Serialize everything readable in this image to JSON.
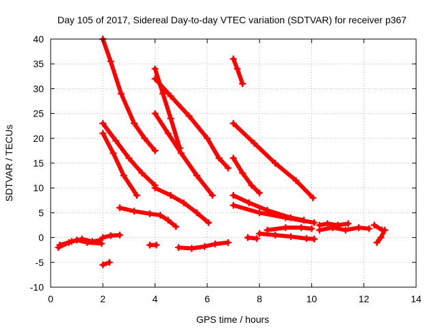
{
  "chart_data": {
    "type": "scatter",
    "title": "Day 105 of 2017, Sidereal Day-to-day VTEC variation (SDTVAR) for receiver p367",
    "xlabel": "GPS time / hours",
    "ylabel": "SDTVAR / TECUs",
    "xlim": [
      0,
      14
    ],
    "ylim": [
      -10,
      40
    ],
    "xticks": [
      "0",
      "2",
      "4",
      "6",
      "8",
      "10",
      "12",
      "14"
    ],
    "yticks": [
      "-10",
      "-5",
      "0",
      "5",
      "10",
      "15",
      "20",
      "25",
      "30",
      "35",
      "40"
    ],
    "grid": true,
    "marker": "+",
    "color": "#ff0000",
    "series": [
      {
        "points": [
          [
            2.0,
            40.0
          ],
          [
            2.3,
            35.5
          ],
          [
            2.7,
            29.0
          ],
          [
            3.2,
            23.0
          ],
          [
            3.6,
            20.0
          ],
          [
            4.0,
            17.5
          ]
        ]
      },
      {
        "points": [
          [
            4.0,
            34.0
          ],
          [
            4.3,
            29.0
          ],
          [
            4.6,
            24.0
          ],
          [
            4.95,
            18.0
          ]
        ]
      },
      {
        "points": [
          [
            7.0,
            36.0
          ],
          [
            7.15,
            34.0
          ],
          [
            7.35,
            31.0
          ]
        ]
      },
      {
        "points": [
          [
            4.0,
            32.0
          ],
          [
            4.6,
            28.5
          ],
          [
            5.3,
            24.5
          ],
          [
            6.0,
            20.0
          ],
          [
            6.45,
            16.0
          ],
          [
            6.8,
            14.0
          ]
        ]
      },
      {
        "points": [
          [
            7.0,
            23.0
          ],
          [
            7.8,
            19.0
          ],
          [
            8.6,
            15.0
          ],
          [
            9.4,
            11.5
          ],
          [
            10.05,
            8.0
          ]
        ]
      },
      {
        "points": [
          [
            2.0,
            23.0
          ],
          [
            2.5,
            19.5
          ],
          [
            3.0,
            16.0
          ],
          [
            3.5,
            13.0
          ],
          [
            4.0,
            10.5
          ]
        ]
      },
      {
        "points": [
          [
            2.0,
            21.0
          ],
          [
            2.4,
            17.0
          ],
          [
            2.8,
            12.5
          ],
          [
            3.3,
            8.5
          ]
        ]
      },
      {
        "points": [
          [
            4.0,
            25.0
          ],
          [
            4.5,
            21.0
          ],
          [
            5.0,
            17.0
          ],
          [
            5.6,
            12.5
          ],
          [
            6.2,
            8.5
          ]
        ]
      },
      {
        "points": [
          [
            7.0,
            16.0
          ],
          [
            7.35,
            13.0
          ],
          [
            7.7,
            10.5
          ],
          [
            8.0,
            9.0
          ]
        ]
      },
      {
        "points": [
          [
            4.0,
            10.0
          ],
          [
            4.6,
            8.5
          ],
          [
            5.1,
            7.0
          ],
          [
            5.6,
            5.0
          ],
          [
            6.05,
            3.0
          ]
        ]
      },
      {
        "points": [
          [
            7.0,
            8.5
          ],
          [
            7.6,
            7.0
          ],
          [
            8.3,
            5.5
          ],
          [
            9.2,
            4.0
          ],
          [
            9.7,
            3.5
          ]
        ]
      },
      {
        "points": [
          [
            7.0,
            6.5
          ],
          [
            8.0,
            5.0
          ],
          [
            9.0,
            4.0
          ],
          [
            10.1,
            3.0
          ]
        ]
      },
      {
        "points": [
          [
            2.65,
            6.0
          ],
          [
            3.2,
            5.3
          ],
          [
            3.8,
            4.8
          ],
          [
            4.2,
            4.5
          ],
          [
            4.5,
            3.5
          ],
          [
            4.8,
            2.2
          ]
        ]
      },
      {
        "points": [
          [
            8.3,
            1.5
          ],
          [
            9.0,
            2.0
          ],
          [
            9.6,
            2.0
          ],
          [
            10.0,
            1.8
          ]
        ]
      },
      {
        "points": [
          [
            8.0,
            0.8
          ],
          [
            8.6,
            0.5
          ],
          [
            9.2,
            0.2
          ],
          [
            9.8,
            -0.2
          ],
          [
            10.1,
            -0.3
          ]
        ]
      },
      {
        "points": [
          [
            10.3,
            1.5
          ],
          [
            10.8,
            2.0
          ],
          [
            11.3,
            1.5
          ],
          [
            11.8,
            2.0
          ],
          [
            12.2,
            1.8
          ]
        ]
      },
      {
        "points": [
          [
            10.3,
            2.5
          ],
          [
            10.6,
            2.8
          ],
          [
            11.0,
            2.5
          ],
          [
            11.4,
            2.8
          ]
        ]
      },
      {
        "points": [
          [
            12.4,
            2.5
          ],
          [
            12.7,
            1.5
          ]
        ]
      },
      {
        "points": [
          [
            12.5,
            -1.0
          ],
          [
            12.65,
            0.0
          ],
          [
            12.8,
            1.5
          ]
        ]
      },
      {
        "points": [
          [
            0.3,
            -2.0
          ],
          [
            0.7,
            -1.0
          ],
          [
            1.0,
            -0.5
          ],
          [
            1.4,
            -1.0
          ],
          [
            1.95,
            -1.2
          ]
        ]
      },
      {
        "points": [
          [
            0.35,
            -1.5
          ],
          [
            0.8,
            -0.8
          ],
          [
            1.2,
            -0.3
          ],
          [
            1.6,
            -0.8
          ],
          [
            1.9,
            -0.5
          ]
        ]
      },
      {
        "points": [
          [
            2.0,
            0.0
          ],
          [
            2.3,
            0.4
          ],
          [
            2.65,
            0.5
          ]
        ]
      },
      {
        "points": [
          [
            2.0,
            -5.5
          ],
          [
            2.25,
            -5.0
          ]
        ]
      },
      {
        "points": [
          [
            3.8,
            -1.5
          ],
          [
            4.05,
            -1.5
          ]
        ]
      },
      {
        "points": [
          [
            4.9,
            -2.0
          ],
          [
            5.4,
            -2.2
          ],
          [
            5.9,
            -1.8
          ],
          [
            6.3,
            -1.3
          ],
          [
            6.8,
            -1.0
          ]
        ]
      },
      {
        "points": [
          [
            7.55,
            0.0
          ],
          [
            7.9,
            -0.2
          ]
        ]
      }
    ]
  }
}
